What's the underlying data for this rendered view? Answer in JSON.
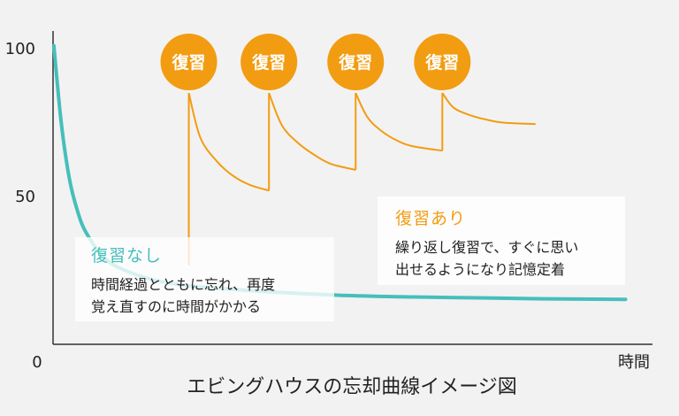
{
  "chart_data": {
    "type": "line",
    "title": "エビングハウスの忘却曲線イメージ図",
    "xlabel": "時間",
    "ylabel": "",
    "ylim": [
      0,
      100
    ],
    "y_ticks": [
      "100",
      "50",
      "0"
    ],
    "colors": {
      "no_review": "#45bfba",
      "review": "#f29c11"
    },
    "series": [
      {
        "key": "no_review",
        "name": "復習なし",
        "x": [
          0.05,
          0.5,
          1,
          1.5,
          2,
          3,
          4,
          6,
          8,
          10,
          14,
          18,
          22,
          26,
          30,
          35
        ],
        "values": [
          101,
          75,
          56,
          45,
          38,
          30,
          26,
          22,
          20,
          19,
          17.5,
          16.5,
          16,
          15.7,
          15.4,
          15.2
        ]
      },
      {
        "key": "review",
        "name": "復習あり",
        "x": [
          8.3,
          9,
          10,
          11,
          12,
          13.2,
          13.2,
          14,
          15,
          16,
          17,
          18.5,
          18.5,
          19.2,
          20,
          21,
          22,
          23.8,
          23.8,
          24.5,
          25.5,
          26.5,
          27.5,
          29.5
        ],
        "values": [
          85,
          70,
          62,
          57,
          54,
          52,
          85,
          74,
          68,
          64,
          61,
          59,
          85,
          77,
          72.5,
          69,
          67,
          65.5,
          85,
          80,
          77.5,
          76,
          75,
          74.5
        ]
      }
    ],
    "reviews": {
      "label": "復習",
      "x": [
        8.3,
        13.2,
        18.5,
        23.8
      ]
    },
    "annotations": {
      "no_review": {
        "title": "復習なし",
        "lines": [
          "時間経過とともに忘れ、再度",
          "覚え直すのに時間がかかる"
        ]
      },
      "review": {
        "title": "復習あり",
        "lines": [
          "繰り返し復習で、すぐに思い",
          "出せるようになり記憶定着"
        ]
      }
    }
  }
}
